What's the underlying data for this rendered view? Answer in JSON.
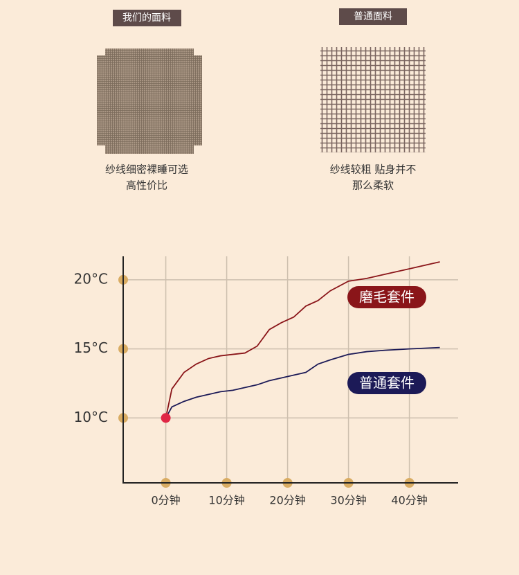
{
  "fabrics": [
    {
      "title": "我们的面料",
      "caption": [
        "纱线细密裸睡可选",
        "高性价比"
      ]
    },
    {
      "title": "普通面料",
      "caption": [
        "纱线较粗 贴身并不",
        "那么柔软"
      ]
    }
  ],
  "chart_data": {
    "type": "line",
    "x": [
      0,
      1,
      3,
      5,
      7,
      9,
      11,
      13,
      15,
      17,
      19,
      21,
      23,
      25,
      27,
      30,
      33,
      36,
      40,
      45
    ],
    "series": [
      {
        "name": "磨毛套件",
        "color": "#8a1519",
        "values": [
          10,
          12.1,
          13.3,
          13.9,
          14.3,
          14.5,
          14.6,
          14.7,
          15.2,
          16.4,
          16.9,
          17.3,
          18.1,
          18.5,
          19.2,
          19.9,
          20.1,
          20.4,
          20.8,
          21.3
        ]
      },
      {
        "name": "普通套件",
        "color": "#1c1a57",
        "values": [
          10,
          10.8,
          11.2,
          11.5,
          11.7,
          11.9,
          12.0,
          12.2,
          12.4,
          12.7,
          12.9,
          13.1,
          13.3,
          13.9,
          14.2,
          14.6,
          14.8,
          14.9,
          15.0,
          15.1
        ]
      }
    ],
    "xlim": [
      -7,
      48
    ],
    "ylim": [
      5.3,
      21.7
    ],
    "xticks": [
      {
        "value": 0,
        "label": "0分钟"
      },
      {
        "value": 10,
        "label": "10分钟"
      },
      {
        "value": 20,
        "label": "20分钟"
      },
      {
        "value": 30,
        "label": "30分钟"
      },
      {
        "value": 40,
        "label": "40分钟"
      }
    ],
    "yticks": [
      {
        "value": 10,
        "label": "10°C"
      },
      {
        "value": 15,
        "label": "15°C"
      },
      {
        "value": 20,
        "label": "20°C"
      }
    ],
    "grid": true
  }
}
